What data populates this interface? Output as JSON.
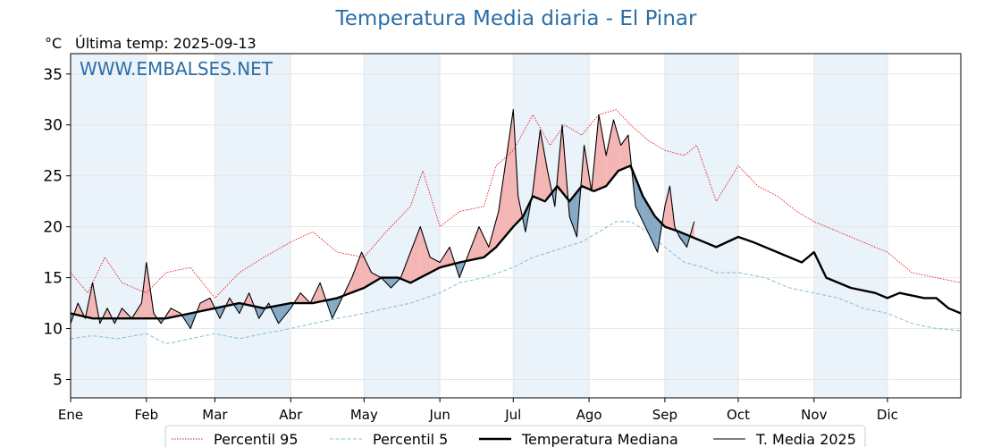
{
  "title": "Temperatura Media diaria - El Pinar",
  "unit_label": "°C",
  "last_temp_label": "Última temp: 2025-09-13",
  "watermark": "WWW.EMBALSES.NET",
  "colors": {
    "title": "#2b6ea6",
    "p95": "#e41a1c",
    "p5": "#8ac3dc",
    "median": "#000000",
    "current": "#000000",
    "above_fill": "#f4b5b5",
    "below_fill": "#86a9c6",
    "band": "#eaf2fa"
  },
  "legend": {
    "p95": "Percentil 95",
    "p5": "Percentil 5",
    "median": "Temperatura Mediana",
    "current": "T. Media 2025"
  },
  "chart_data": {
    "type": "line",
    "x_unit": "day_of_year",
    "xlim": [
      1,
      365
    ],
    "ylim": [
      3.2,
      37
    ],
    "yticks": [
      5,
      10,
      15,
      20,
      25,
      30,
      35
    ],
    "x_ticks": [
      {
        "label": "Ene",
        "day": 1
      },
      {
        "label": "Feb",
        "day": 32
      },
      {
        "label": "Mar",
        "day": 60
      },
      {
        "label": "Abr",
        "day": 91
      },
      {
        "label": "May",
        "day": 121
      },
      {
        "label": "Jun",
        "day": 152
      },
      {
        "label": "Jul",
        "day": 182
      },
      {
        "label": "Ago",
        "day": 213
      },
      {
        "label": "Sep",
        "day": 244
      },
      {
        "label": "Oct",
        "day": 274
      },
      {
        "label": "Nov",
        "day": 305
      },
      {
        "label": "Dic",
        "day": 335
      }
    ],
    "shaded_month_bands": [
      [
        1,
        32
      ],
      [
        60,
        91
      ],
      [
        121,
        152
      ],
      [
        182,
        213
      ],
      [
        244,
        274
      ],
      [
        305,
        335
      ]
    ],
    "grid": true,
    "legend_position": "bottom",
    "series": [
      {
        "key": "p95",
        "name": "Percentil 95",
        "style": "dotted",
        "x": [
          1,
          8,
          15,
          22,
          32,
          40,
          50,
          60,
          70,
          80,
          91,
          100,
          110,
          121,
          130,
          140,
          145,
          152,
          160,
          170,
          175,
          182,
          190,
          197,
          203,
          210,
          217,
          224,
          230,
          237,
          244,
          252,
          257,
          265,
          274,
          282,
          290,
          298,
          305,
          315,
          325,
          335,
          345,
          355,
          365
        ],
        "values": [
          15.5,
          13.5,
          17.0,
          14.5,
          13.5,
          15.5,
          16.0,
          13.0,
          15.5,
          17.0,
          18.5,
          19.5,
          17.5,
          17.0,
          19.5,
          22.0,
          25.5,
          20.0,
          21.5,
          22.0,
          26.0,
          27.5,
          31.0,
          28.0,
          30.0,
          29.0,
          31.0,
          31.5,
          30.0,
          28.5,
          27.5,
          27.0,
          28.0,
          22.5,
          26.0,
          24.0,
          23.0,
          21.5,
          20.5,
          19.5,
          18.5,
          17.5,
          15.5,
          15.0,
          14.5
        ]
      },
      {
        "key": "p5",
        "name": "Percentil 5",
        "style": "dashed",
        "x": [
          1,
          10,
          20,
          32,
          40,
          50,
          60,
          70,
          80,
          91,
          100,
          110,
          121,
          130,
          140,
          152,
          160,
          170,
          182,
          190,
          197,
          203,
          210,
          217,
          224,
          230,
          237,
          244,
          252,
          260,
          265,
          274,
          285,
          295,
          305,
          315,
          325,
          335,
          345,
          355,
          365
        ],
        "values": [
          9.0,
          9.3,
          9.0,
          9.5,
          8.5,
          9.0,
          9.5,
          9.0,
          9.5,
          10.0,
          10.5,
          11.0,
          11.5,
          12.0,
          12.5,
          13.5,
          14.5,
          15.0,
          16.0,
          17.0,
          17.5,
          18.0,
          18.5,
          19.5,
          20.5,
          20.5,
          19.5,
          18.0,
          16.5,
          16.0,
          15.5,
          15.5,
          15.0,
          14.0,
          13.5,
          13.0,
          12.0,
          11.5,
          10.5,
          10.0,
          9.8
        ]
      },
      {
        "key": "median",
        "name": "Temperatura Mediana",
        "style": "solid-thick",
        "x": [
          1,
          10,
          20,
          32,
          40,
          50,
          60,
          70,
          80,
          91,
          100,
          110,
          121,
          128,
          135,
          140,
          152,
          160,
          170,
          175,
          182,
          186,
          190,
          195,
          200,
          205,
          210,
          215,
          220,
          225,
          230,
          235,
          240,
          244,
          250,
          255,
          260,
          265,
          274,
          280,
          290,
          300,
          305,
          310,
          320,
          330,
          335,
          340,
          350,
          355,
          360,
          365
        ],
        "values": [
          11.5,
          11.0,
          11.0,
          11.0,
          11.0,
          11.5,
          12.0,
          12.5,
          12.0,
          12.5,
          12.5,
          13.0,
          14.0,
          15.0,
          15.0,
          14.5,
          16.0,
          16.5,
          17.0,
          18.0,
          20.0,
          21.0,
          23.0,
          22.5,
          24.0,
          22.5,
          24.0,
          23.5,
          24.0,
          25.5,
          26.0,
          23.0,
          21.0,
          20.0,
          19.5,
          19.0,
          18.5,
          18.0,
          19.0,
          18.5,
          17.5,
          16.5,
          17.5,
          15.0,
          14.0,
          13.5,
          13.0,
          13.5,
          13.0,
          13.0,
          12.0,
          11.5
        ]
      },
      {
        "key": "current",
        "name": "T. Media 2025",
        "style": "solid-thin",
        "x": [
          1,
          4,
          7,
          10,
          13,
          16,
          19,
          22,
          26,
          30,
          32,
          35,
          38,
          42,
          46,
          50,
          54,
          58,
          62,
          66,
          70,
          74,
          78,
          82,
          86,
          91,
          95,
          99,
          103,
          108,
          112,
          116,
          120,
          124,
          128,
          132,
          136,
          140,
          144,
          148,
          152,
          156,
          160,
          164,
          168,
          172,
          176,
          179,
          182,
          184,
          187,
          190,
          193,
          196,
          199,
          202,
          205,
          208,
          211,
          214,
          217,
          220,
          223,
          226,
          229,
          232,
          235,
          238,
          241,
          244,
          246,
          248,
          250,
          253,
          256
        ],
        "values": [
          10.5,
          12.5,
          11.0,
          14.5,
          10.5,
          12.0,
          10.5,
          12.0,
          11.0,
          12.5,
          16.5,
          11.5,
          10.5,
          12.0,
          11.5,
          10.0,
          12.5,
          13.0,
          11.0,
          13.0,
          11.5,
          13.5,
          11.0,
          12.5,
          10.5,
          12.0,
          13.5,
          12.5,
          14.5,
          11.0,
          13.0,
          15.0,
          17.5,
          15.5,
          15.0,
          14.0,
          15.0,
          17.5,
          20.0,
          17.0,
          16.5,
          18.0,
          15.0,
          17.5,
          20.0,
          18.0,
          21.5,
          26.5,
          31.5,
          23.0,
          19.5,
          23.5,
          29.5,
          25.5,
          22.0,
          30.0,
          21.0,
          19.0,
          28.0,
          23.5,
          31.0,
          27.0,
          30.5,
          28.0,
          29.0,
          22.0,
          20.5,
          19.0,
          17.5,
          22.0,
          24.0,
          20.0,
          19.0,
          18.0,
          20.5
        ]
      }
    ]
  }
}
